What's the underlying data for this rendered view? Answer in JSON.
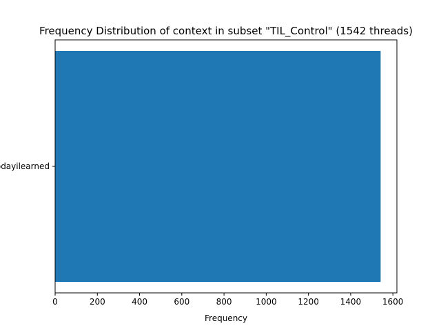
{
  "chart_data": {
    "type": "bar",
    "orientation": "horizontal",
    "title": "Frequency Distribution of context in subset \"TIL_Control\" (1542 threads)",
    "xlabel": "Frequency",
    "ylabel": "",
    "categories": [
      "todayilearned"
    ],
    "values": [
      1542
    ],
    "xlim": [
      0,
      1619
    ],
    "xticks": [
      0,
      200,
      400,
      600,
      800,
      1000,
      1200,
      1400,
      1600
    ],
    "bar_color": "#1f77b4",
    "grid": false,
    "legend": "none"
  }
}
